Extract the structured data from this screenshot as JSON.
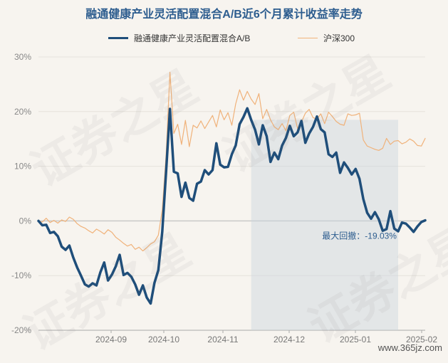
{
  "chart_data": {
    "type": "line",
    "title": "融通健康产业灵活配置混合A/B近6个月累计收益率走势",
    "ylim": [
      -20,
      30
    ],
    "yticks": [
      30,
      20,
      10,
      0,
      -10,
      -20
    ],
    "ytick_labels": [
      "30%",
      "20%",
      "10%",
      "0%",
      "-10%",
      "-20%"
    ],
    "xtick_labels": [
      "2024-09",
      "2024-10",
      "2024-11",
      "2024-12",
      "2025-01",
      "2025-02"
    ],
    "legend_position": "top",
    "drawdown_label": "最大回撤：-19.03%",
    "series": [
      {
        "name": "融通健康产业灵活配置混合A/B",
        "color": "#1f4e7a",
        "values": [
          0,
          -0.8,
          -0.7,
          -2.2,
          -2,
          -2.8,
          -4.7,
          -5.3,
          -4.5,
          -6.7,
          -8.5,
          -10,
          -11.6,
          -12,
          -11.4,
          -11.8,
          -9.4,
          -7.6,
          -10.9,
          -9.8,
          -8.3,
          -6.2,
          -9.9,
          -9.5,
          -10.2,
          -11.6,
          -13.5,
          -11.8,
          -14,
          -15.1,
          -11.3,
          -9,
          -2,
          9,
          20.5,
          9,
          8.7,
          4.4,
          7,
          4.2,
          3.7,
          6.8,
          7.2,
          9.3,
          8.5,
          9.3,
          14.2,
          10.3,
          9.8,
          9.9,
          12.2,
          13.8,
          17.7,
          19,
          20.6,
          18.5,
          16.7,
          14,
          17.5,
          15.5,
          10.8,
          12.5,
          11.3,
          13.8,
          15.2,
          17.4,
          15.5,
          16.2,
          18.3,
          14.3,
          16,
          17.2,
          19.1,
          16.8,
          16.2,
          12.2,
          11.7,
          12.5,
          8.8,
          10.7,
          9.7,
          8.5,
          9.5,
          7.7,
          4,
          1.5,
          0.4,
          1.6,
          0.3,
          -1.8,
          -1.5,
          1.8,
          -1.4,
          -1.9,
          -0.3,
          -0.5,
          -1.2,
          -2,
          -1,
          -0.2,
          0.1
        ]
      },
      {
        "name": "沪深300",
        "color": "#f0b27a",
        "values": [
          0,
          -0.2,
          0.5,
          -0.3,
          0.1,
          -0.4,
          0.2,
          -0.1,
          0.7,
          0.3,
          -0.5,
          -1,
          -1.3,
          -1.8,
          -2.2,
          -1.5,
          -1.9,
          -2.4,
          -1.6,
          -2.1,
          -3,
          -3.5,
          -4.1,
          -4.6,
          -4.3,
          -5.2,
          -4.8,
          -5.5,
          -4.9,
          -4.2,
          -3.8,
          -2.6,
          2,
          12,
          27.2,
          16,
          17.7,
          14,
          18.4,
          13.6,
          17.5,
          17,
          18.3,
          16.9,
          18.1,
          19.3,
          17.2,
          20.3,
          18.5,
          19.8,
          17.5,
          21.4,
          24,
          22.1,
          23.7,
          22.3,
          21.3,
          23.3,
          18.7,
          20.4,
          18.5,
          17.2,
          16.7,
          17.8,
          16.5,
          19.3,
          19.9,
          16.9,
          18.1,
          19.7,
          20.4,
          18.9,
          18.6,
          19.6,
          17.8,
          19.9,
          19.1,
          18.2,
          17.7,
          17.5,
          19.6,
          19.3,
          19.4,
          19.7,
          14.8,
          13.7,
          13.4,
          13.1,
          12.9,
          13.3,
          15.1,
          14,
          14.6,
          14.7,
          14.1,
          14.4,
          15,
          14.6,
          13.8,
          13.7,
          15.1
        ]
      }
    ],
    "drawdown_window": {
      "start_index": 55,
      "end_index": 93
    }
  },
  "watermark_text": "证券之星",
  "site_mark": "www.365jz.com"
}
